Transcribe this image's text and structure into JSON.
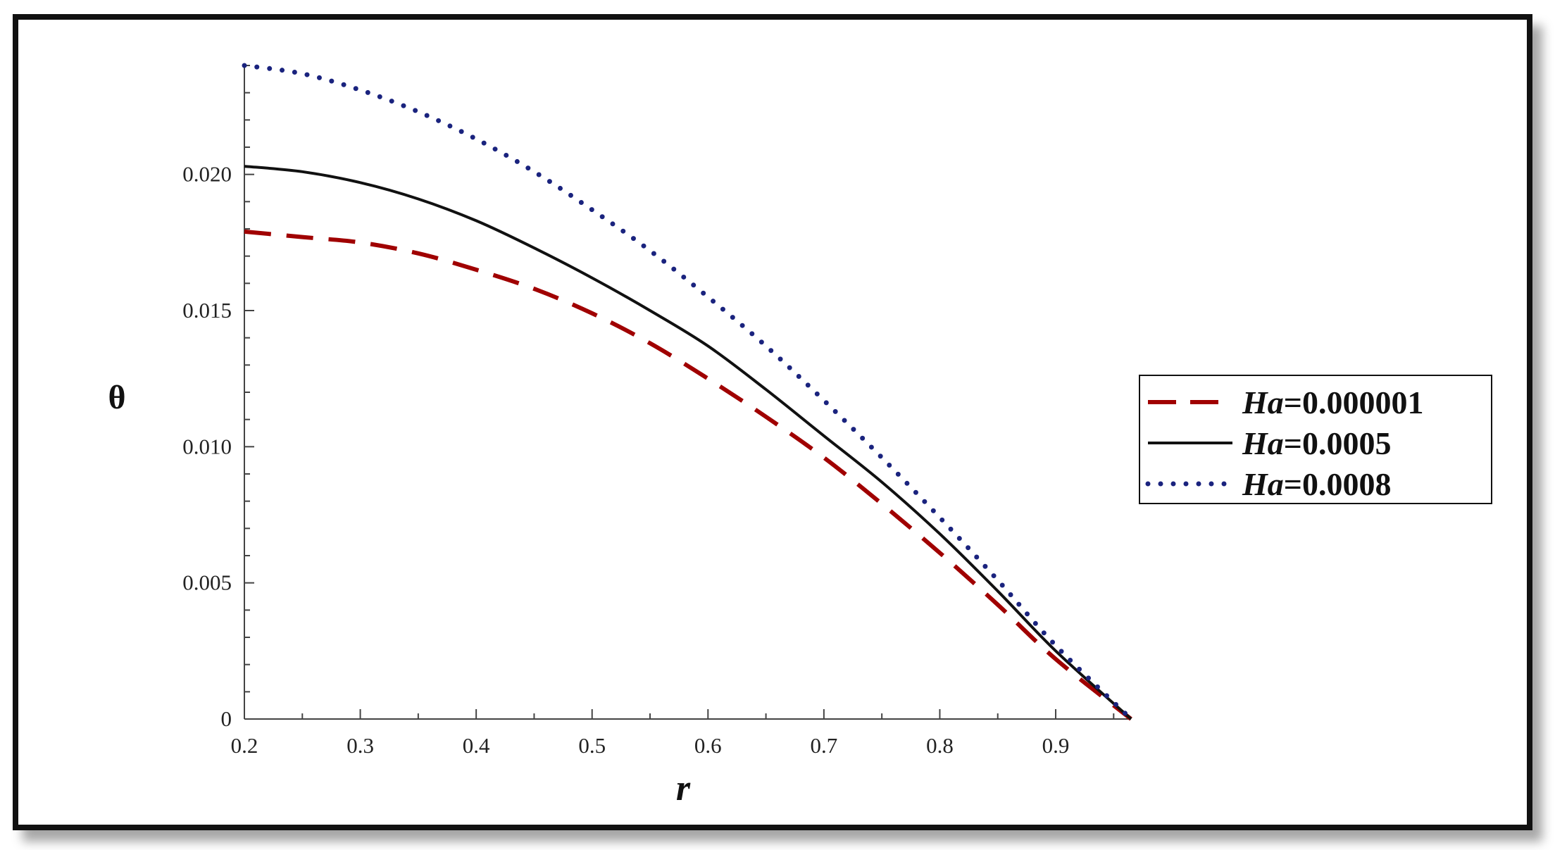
{
  "chart_data": {
    "type": "line",
    "xlabel": "r",
    "ylabel": "θ",
    "xlim": [
      0.2,
      0.965
    ],
    "ylim": [
      0,
      0.024
    ],
    "x_ticks": [
      "0.2",
      "0.3",
      "0.4",
      "0.5",
      "0.6",
      "0.7",
      "0.8",
      "0.9"
    ],
    "y_ticks": [
      "0",
      "0.005",
      "0.010",
      "0.015",
      "0.020"
    ],
    "grid": false,
    "legend_position": "right",
    "series": [
      {
        "name": "Ha=0.000001",
        "name_var": "Ha",
        "name_value": "=0.000001",
        "style": "dashed",
        "color": "#a00000",
        "x": [
          0.2,
          0.25,
          0.3,
          0.35,
          0.4,
          0.45,
          0.5,
          0.55,
          0.6,
          0.65,
          0.7,
          0.75,
          0.8,
          0.85,
          0.9,
          0.965
        ],
        "y": [
          0.0179,
          0.0177,
          0.0175,
          0.0171,
          0.0165,
          0.0158,
          0.0149,
          0.0138,
          0.0125,
          0.0111,
          0.0096,
          0.0079,
          0.0061,
          0.0042,
          0.0022,
          0.0
        ]
      },
      {
        "name": "Ha=0.0005",
        "name_var": "Ha",
        "name_value": "=0.0005",
        "style": "solid",
        "color": "#111111",
        "x": [
          0.2,
          0.25,
          0.3,
          0.35,
          0.4,
          0.45,
          0.5,
          0.55,
          0.6,
          0.65,
          0.7,
          0.75,
          0.8,
          0.85,
          0.9,
          0.965
        ],
        "y": [
          0.0203,
          0.0201,
          0.0197,
          0.0191,
          0.0183,
          0.0173,
          0.0162,
          0.015,
          0.0137,
          0.0121,
          0.0104,
          0.0087,
          0.0068,
          0.0047,
          0.0025,
          0.0
        ]
      },
      {
        "name": "Ha=0.0008",
        "name_var": "Ha",
        "name_value": "=0.0008",
        "style": "dotted",
        "color": "#1a237e",
        "x": [
          0.2,
          0.25,
          0.3,
          0.35,
          0.4,
          0.45,
          0.5,
          0.55,
          0.6,
          0.65,
          0.7,
          0.75,
          0.8,
          0.85,
          0.9,
          0.965
        ],
        "y": [
          0.024,
          0.0237,
          0.0231,
          0.0223,
          0.0213,
          0.0201,
          0.0187,
          0.0172,
          0.0155,
          0.0137,
          0.0117,
          0.0096,
          0.0074,
          0.0051,
          0.0027,
          0.0
        ]
      }
    ]
  }
}
